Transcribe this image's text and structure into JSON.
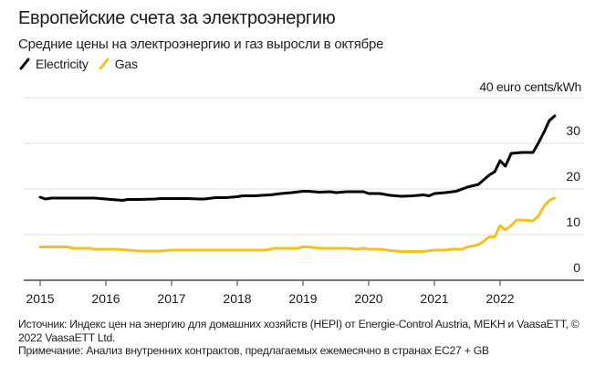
{
  "header": {
    "title": "Европейские счета за электроэнергию",
    "subtitle": "Средние цены на электроэнергию и газ выросли в октябре"
  },
  "legend": [
    {
      "label": "Electricity",
      "color": "#000000"
    },
    {
      "label": "Gas",
      "color": "#f5c21b"
    }
  ],
  "footer": {
    "source": "Источник: Индекс цен на энергию для домашних хозяйств (HEPI) от Energie-Control Austria, MEKH и VaasaETT, © 2022 VaasaETT Ltd.",
    "note": "Примечание: Анализ внутренних контрактов, предлагаемых ежемесячно в странах EC27 + GB"
  },
  "chart_data": {
    "type": "line",
    "title": "Европейские счета за электроэнергию",
    "subtitle": "Средние цены на электроэнергию и газ выросли в октябре",
    "xlabel": "",
    "ylabel": "euro cents/kWh",
    "unit_label": "40 euro cents/kWh",
    "ylim": [
      0,
      40
    ],
    "yticks": [
      0,
      10,
      20,
      30,
      40
    ],
    "ytick_labels": [
      "0",
      "10",
      "20",
      "30",
      "40 euro cents/kWh"
    ],
    "xlim": [
      2015.0,
      2023.25
    ],
    "xticks": [
      2015,
      2016,
      2017,
      2018,
      2019,
      2020,
      2021,
      2022
    ],
    "xtick_labels": [
      "2015",
      "2016",
      "2017",
      "2018",
      "2019",
      "2020",
      "2021",
      "2022"
    ],
    "grid": true,
    "legend_position": "top-left",
    "series": [
      {
        "name": "Electricity",
        "color": "#000000",
        "x": [
          2015.0,
          2015.08,
          2015.17,
          2015.5,
          2015.83,
          2016.0,
          2016.17,
          2016.25,
          2016.33,
          2016.5,
          2016.75,
          2016.83,
          2017.0,
          2017.25,
          2017.42,
          2017.5,
          2017.67,
          2017.83,
          2018.0,
          2018.08,
          2018.25,
          2018.5,
          2018.67,
          2018.83,
          2019.0,
          2019.08,
          2019.25,
          2019.42,
          2019.5,
          2019.67,
          2019.83,
          2019.92,
          2020.0,
          2020.17,
          2020.33,
          2020.5,
          2020.67,
          2020.83,
          2020.92,
          2021.0,
          2021.17,
          2021.33,
          2021.5,
          2021.67,
          2021.75,
          2021.83,
          2021.92,
          2022.0,
          2022.08,
          2022.17,
          2022.33,
          2022.5,
          2022.58,
          2022.67,
          2022.75,
          2022.83
        ],
        "values": [
          18.2,
          17.8,
          18.0,
          18.0,
          18.0,
          17.8,
          17.6,
          17.5,
          17.7,
          17.7,
          17.8,
          17.9,
          17.9,
          17.9,
          17.8,
          17.8,
          18.1,
          18.1,
          18.3,
          18.5,
          18.5,
          18.7,
          19.0,
          19.2,
          19.5,
          19.5,
          19.3,
          19.4,
          19.2,
          19.4,
          19.4,
          19.4,
          19.0,
          19.0,
          18.6,
          18.4,
          18.5,
          18.7,
          18.5,
          19.0,
          19.2,
          19.5,
          20.4,
          21.0,
          22.0,
          23.0,
          23.8,
          26.2,
          25.0,
          27.8,
          28.0,
          28.0,
          30.0,
          32.5,
          35.0,
          36.0
        ]
      },
      {
        "name": "Gas",
        "color": "#f5c21b",
        "x": [
          2015.0,
          2015.25,
          2015.42,
          2015.5,
          2015.75,
          2015.83,
          2016.0,
          2016.17,
          2016.33,
          2016.5,
          2016.67,
          2016.83,
          2017.0,
          2017.25,
          2017.5,
          2017.75,
          2018.0,
          2018.25,
          2018.42,
          2018.58,
          2018.75,
          2018.92,
          2019.0,
          2019.08,
          2019.25,
          2019.5,
          2019.67,
          2019.83,
          2019.92,
          2020.0,
          2020.17,
          2020.33,
          2020.5,
          2020.67,
          2020.83,
          2021.0,
          2021.17,
          2021.25,
          2021.42,
          2021.5,
          2021.58,
          2021.67,
          2021.75,
          2021.83,
          2021.92,
          2022.0,
          2022.08,
          2022.17,
          2022.25,
          2022.33,
          2022.5,
          2022.58,
          2022.67,
          2022.75,
          2022.83
        ],
        "values": [
          7.3,
          7.3,
          7.3,
          7.0,
          7.0,
          6.8,
          6.8,
          6.8,
          6.6,
          6.4,
          6.4,
          6.4,
          6.6,
          6.6,
          6.6,
          6.6,
          6.6,
          6.6,
          6.6,
          7.0,
          7.0,
          7.0,
          7.3,
          7.3,
          7.0,
          7.0,
          7.0,
          6.8,
          7.0,
          6.8,
          6.8,
          6.5,
          6.3,
          6.3,
          6.3,
          6.6,
          6.6,
          6.8,
          6.8,
          7.3,
          7.5,
          7.8,
          8.5,
          9.5,
          9.5,
          12.0,
          11.0,
          12.0,
          13.2,
          13.2,
          13.0,
          14.0,
          16.2,
          17.5,
          18.0
        ]
      }
    ]
  }
}
